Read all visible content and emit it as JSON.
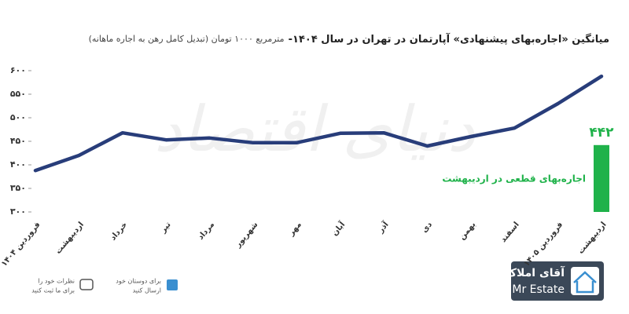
{
  "chart_data": {
    "type": "line",
    "title": "میانگین «اجاره‌بهای پیشنهادی» آپارتمان در تهران در سال ۱۴۰۴-",
    "subtitle": "مترمربع ۱۰۰۰ تومان (تبدیل کامل رهن به اجاره ماهانه)",
    "watermark": "دنیای اقتصاد",
    "categories": [
      "فروردین ۱۴۰۴",
      "اردیبهشت",
      "خرداد",
      "تیر",
      "مرداد",
      "شهریور",
      "مهر",
      "آبان",
      "آذر",
      "دی",
      "بهمن",
      "اسفند",
      "فروردین ۱۴۰۵",
      "اردیبهشت"
    ],
    "series": [
      {
        "type": "line",
        "color": "#283d7a",
        "values": [
          388,
          420,
          468,
          453,
          457,
          447,
          447,
          467,
          468,
          440,
          460,
          478,
          530,
          588
        ]
      },
      {
        "type": "bar",
        "name": "اجاره‌بهای قطعی در اردیبهشت",
        "color": "#1fb24a",
        "values": [
          null,
          null,
          null,
          null,
          null,
          null,
          null,
          null,
          null,
          null,
          null,
          null,
          null,
          442
        ],
        "value_labels": [
          null,
          null,
          null,
          null,
          null,
          null,
          null,
          null,
          null,
          null,
          null,
          null,
          null,
          "۴۴۲"
        ]
      }
    ],
    "ylim": [
      300,
      600
    ],
    "yticks": [
      {
        "value": 300,
        "label": "۳۰۰"
      },
      {
        "value": 350,
        "label": "۳۵۰"
      },
      {
        "value": 400,
        "label": "۴۰۰"
      },
      {
        "value": 450,
        "label": "۴۵۰"
      },
      {
        "value": 500,
        "label": "۵۰۰"
      },
      {
        "value": 550,
        "label": "۵۵۰"
      },
      {
        "value": 600,
        "label": "۶۰۰"
      }
    ]
  },
  "footer": {
    "logo_fa": "آقای املاک",
    "logo_en": "Mr Estate",
    "share": [
      "برای دوستان خود",
      "ارسال کنید"
    ],
    "comment": [
      "نظرات خود را",
      "برای ما ثبت کنید"
    ]
  }
}
